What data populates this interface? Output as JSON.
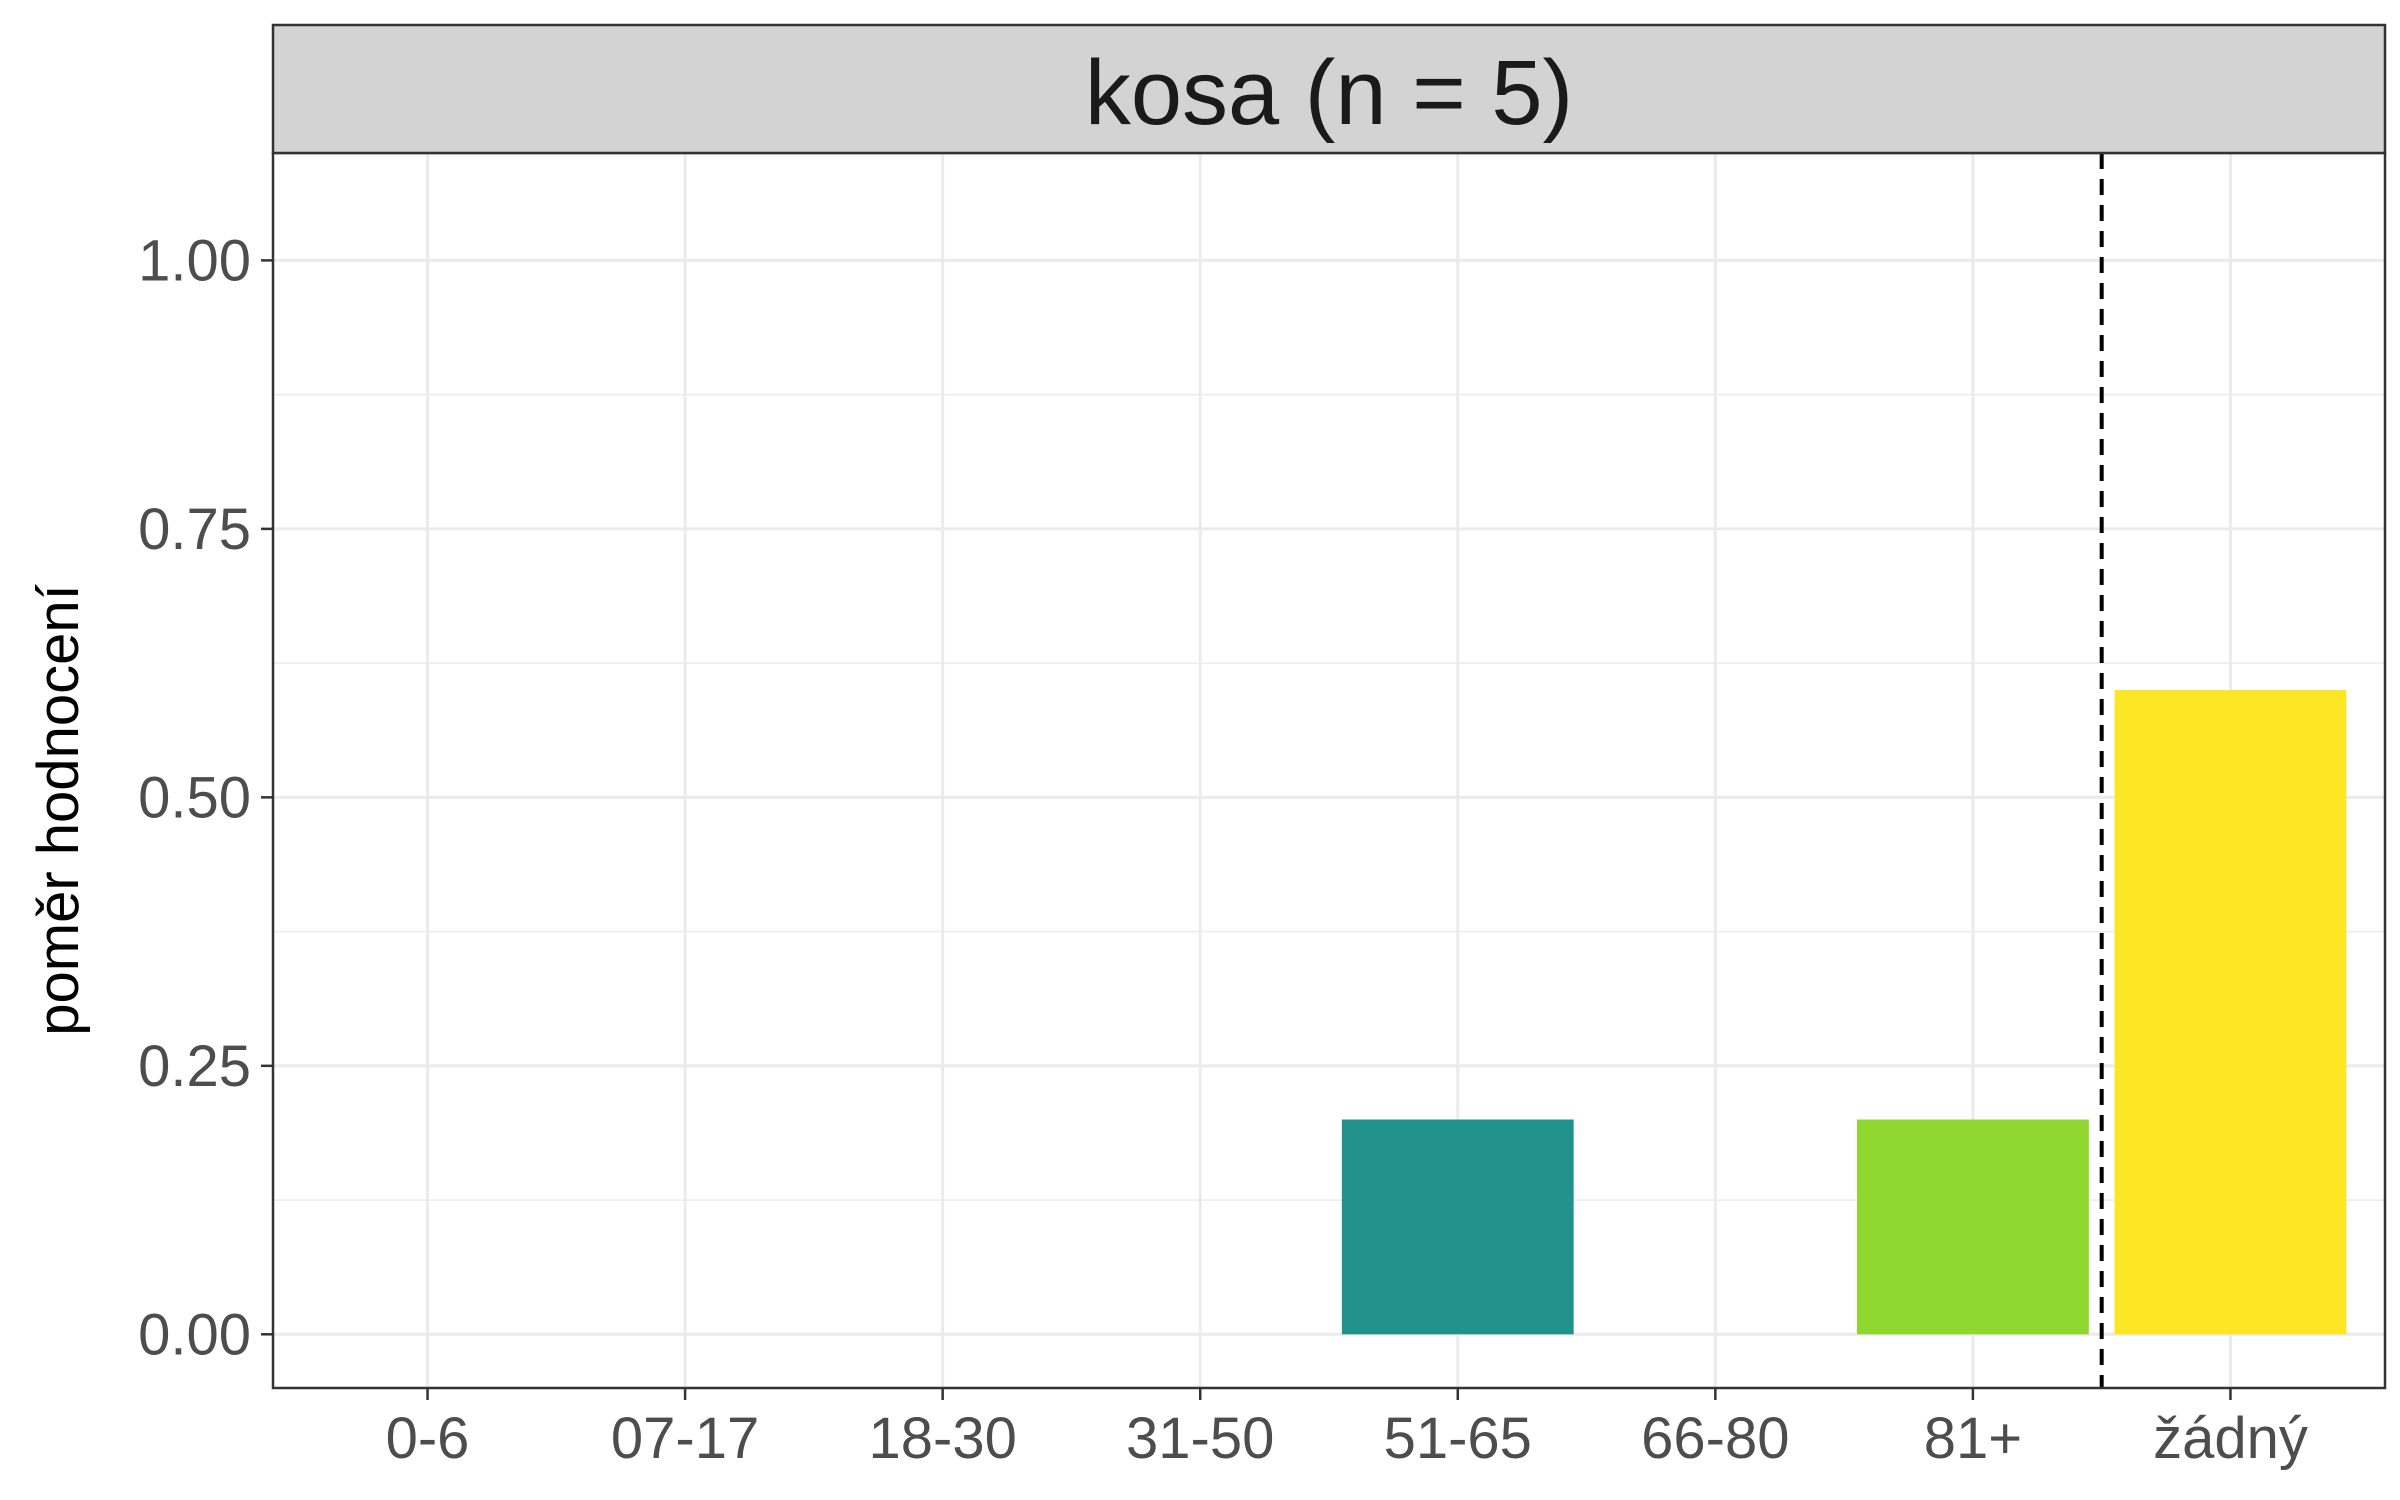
{
  "chart_data": {
    "type": "bar",
    "facet_title": "kosa (n = 5)",
    "ylabel": "poměr hodnocení",
    "categories": [
      "0-6",
      "07-17",
      "18-30",
      "31-50",
      "51-65",
      "66-80",
      "81+",
      "žádný"
    ],
    "values": [
      0,
      0,
      0,
      0,
      0.2,
      0,
      0.2,
      0.6
    ],
    "bar_colors": [
      "#440154",
      "#46337E",
      "#365C8D",
      "#277F8E",
      "#21918C",
      "#4AC16D",
      "#8FD62F",
      "#FDE725"
    ],
    "yticks": [
      "0.00",
      "0.25",
      "0.50",
      "0.75",
      "1.00"
    ],
    "ytick_values": [
      0,
      0.25,
      0.5,
      0.75,
      1.0
    ],
    "ylim": [
      -0.05,
      1.1
    ],
    "grid": true,
    "reference_line": {
      "between": [
        "81+",
        "žádný"
      ],
      "style": "dashed",
      "color": "#000000"
    }
  }
}
